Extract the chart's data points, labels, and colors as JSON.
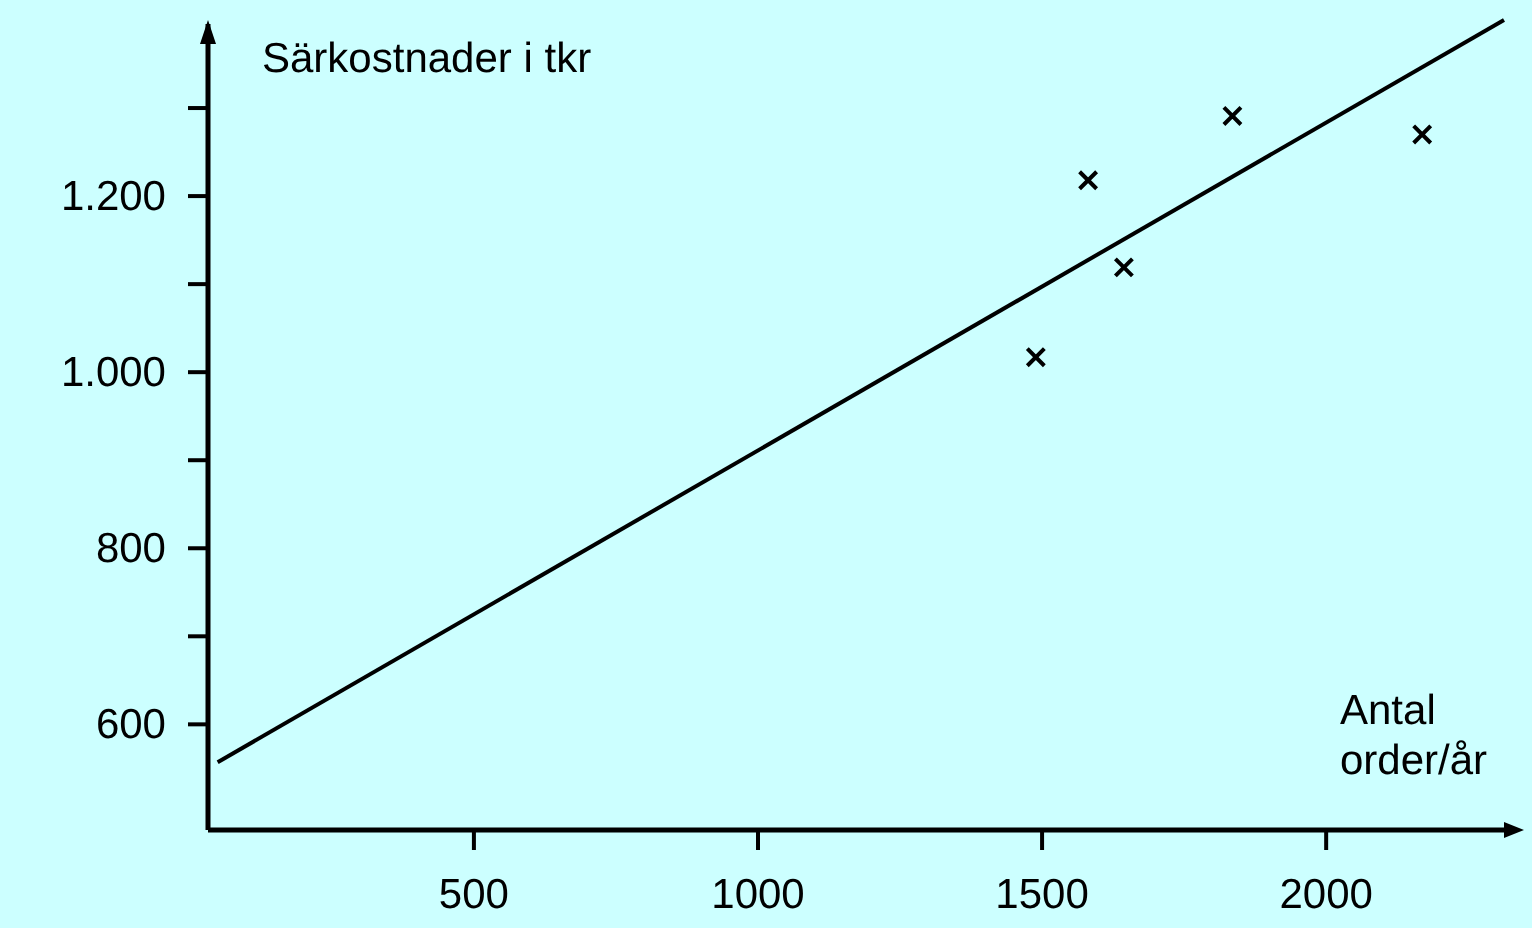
{
  "chart_data": {
    "type": "scatter",
    "ylabel": "Särkostnader i tkr",
    "xlabel": "Antal order/år",
    "x": [
      1489,
      1581,
      1644,
      1835,
      2169
    ],
    "values": [
      1017,
      1218,
      1119,
      1291,
      1270
    ],
    "color": "#000000",
    "marker": "cross",
    "series": [
      {
        "type": "line",
        "x": [
          49,
          2313
        ],
        "values": [
          557,
          1400
        ],
        "color": "#000000",
        "line_style": "solid",
        "marker": "none"
      }
    ],
    "xlim": [
      32,
      2313
    ],
    "ylim": [
      480,
      1400
    ],
    "xticks": [
      500,
      1000,
      1500,
      2000
    ],
    "yticks": [
      {
        "value": 600,
        "label": "600"
      },
      {
        "value": 700,
        "label": null
      },
      {
        "value": 800,
        "label": "800"
      },
      {
        "value": 900,
        "label": null
      },
      {
        "value": 1000,
        "label": "1.000"
      },
      {
        "value": 1100,
        "label": null
      },
      {
        "value": 1200,
        "label": "1.200"
      },
      {
        "value": 1300,
        "label": null
      }
    ],
    "grid": false
  }
}
